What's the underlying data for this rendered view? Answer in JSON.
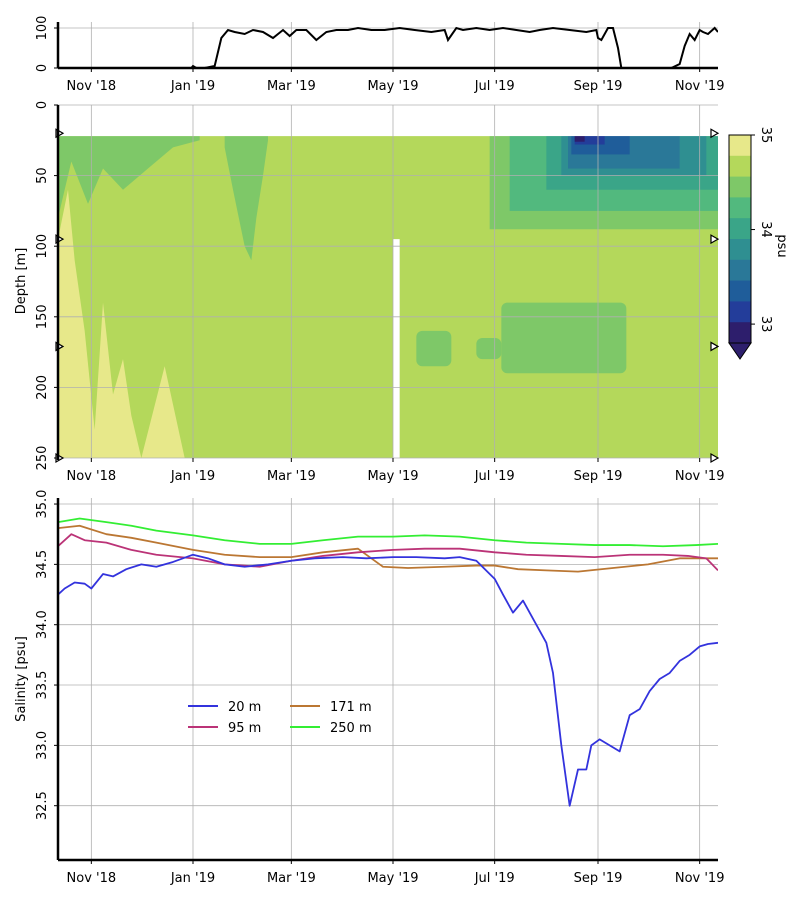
{
  "chart_data": [
    {
      "type": "line",
      "panel": "ice-concentration",
      "title": "",
      "xlabel": "",
      "ylabel": "",
      "xlim": [
        "2018-10-12",
        "2019-11-12"
      ],
      "ylim": [
        0,
        100
      ],
      "yticks": [
        "0",
        "100"
      ],
      "xticks": [
        "Nov '18",
        "Jan '19",
        "Mar '19",
        "May '19",
        "Jul '19",
        "Sep '19",
        "Nov '19"
      ],
      "grid": true,
      "series": [
        {
          "color": "#000000",
          "x": [
            "2018-10-12",
            "2018-12-15",
            "2018-12-31",
            "2019-01-01",
            "2019-01-03",
            "2019-01-08",
            "2019-01-14",
            "2019-01-18",
            "2019-01-22",
            "2019-01-26",
            "2019-02-01",
            "2019-02-06",
            "2019-02-12",
            "2019-02-18",
            "2019-02-24",
            "2019-02-28",
            "2019-03-04",
            "2019-03-10",
            "2019-03-16",
            "2019-03-22",
            "2019-03-28",
            "2019-04-04",
            "2019-04-10",
            "2019-04-18",
            "2019-04-26",
            "2019-05-05",
            "2019-05-14",
            "2019-05-24",
            "2019-06-01",
            "2019-06-03",
            "2019-06-08",
            "2019-06-12",
            "2019-06-20",
            "2019-06-28",
            "2019-07-06",
            "2019-07-14",
            "2019-07-22",
            "2019-07-28",
            "2019-08-05",
            "2019-08-15",
            "2019-08-25",
            "2019-08-31",
            "2019-09-01",
            "2019-09-03",
            "2019-09-07",
            "2019-09-10",
            "2019-09-13",
            "2019-09-15",
            "2019-10-15",
            "2019-10-20",
            "2019-10-23",
            "2019-10-26",
            "2019-10-29",
            "2019-11-01",
            "2019-11-03",
            "2019-11-06",
            "2019-11-10",
            "2019-11-12"
          ],
          "y": [
            0,
            0,
            0,
            5,
            0,
            0,
            5,
            75,
            95,
            90,
            85,
            95,
            90,
            75,
            95,
            80,
            95,
            95,
            70,
            90,
            95,
            95,
            100,
            95,
            95,
            100,
            95,
            90,
            95,
            70,
            100,
            95,
            100,
            95,
            100,
            95,
            90,
            95,
            100,
            95,
            90,
            95,
            75,
            70,
            100,
            100,
            50,
            0,
            0,
            10,
            55,
            85,
            70,
            95,
            90,
            85,
            100,
            90
          ]
        }
      ]
    },
    {
      "type": "heatmap",
      "panel": "salinity-depth",
      "title": "",
      "xlabel": "",
      "ylabel": "Depth [m]",
      "xlim": [
        "2018-10-12",
        "2019-11-12"
      ],
      "ylim": [
        250,
        0
      ],
      "yticks": [
        "0",
        "50",
        "100",
        "150",
        "200",
        "250"
      ],
      "xticks": [
        "Nov '18",
        "Jan '19",
        "Mar '19",
        "May '19",
        "Jul '19",
        "Sep '19",
        "Nov '19"
      ],
      "grid": true,
      "instrument_depths_m": [
        20,
        95,
        171,
        250
      ],
      "data_gap": [
        "2019-05-01",
        "2019-05-05"
      ],
      "colorbar": {
        "label": "psu",
        "range": [
          32.8,
          35
        ],
        "ticks": [
          "33",
          "34",
          "35"
        ],
        "colors": [
          "#2d1e6c",
          "#233d9a",
          "#1f5d9a",
          "#2a7898",
          "#2f8f91",
          "#3aa588",
          "#52b97e",
          "#7ec868",
          "#b4d85b",
          "#e7e88a"
        ]
      },
      "regions": [
        {
          "name": "deep-fresh-layer",
          "x": [
            "2019-05-15",
            "2019-09-18"
          ],
          "depth": [
            160,
            190
          ],
          "salinity": 34.4
        },
        {
          "name": "winter-upper-layer",
          "x": [
            "2018-10-12",
            "2019-02-10"
          ],
          "depth": [
            22,
            110
          ],
          "salinity": 34.4
        },
        {
          "name": "summer-surface-freshening",
          "x": [
            "2019-07-01",
            "2019-11-12"
          ],
          "depth": [
            22,
            90
          ],
          "salinity_min": 32.8
        },
        {
          "name": "salty-bottom-water",
          "x": [
            "2018-10-12",
            "2018-12-27"
          ],
          "depth": [
            100,
            250
          ],
          "salinity": 34.9
        }
      ]
    },
    {
      "type": "line",
      "panel": "salinity-timeseries",
      "title": "",
      "xlabel": "",
      "ylabel": "Salinity [psu]",
      "xlim": [
        "2018-10-12",
        "2019-11-12"
      ],
      "ylim": [
        32.05,
        35.05
      ],
      "yticks": [
        "32.5",
        "33.0",
        "33.5",
        "34.0",
        "34.5",
        "35.0"
      ],
      "xticks": [
        "Nov '18",
        "Jan '19",
        "Mar '19",
        "May '19",
        "Jul '19",
        "Sep '19",
        "Nov '19"
      ],
      "grid": true,
      "legend": "center-left",
      "series": [
        {
          "name": "20 m",
          "color": "#3333dd",
          "x": [
            "2018-10-12",
            "2018-10-16",
            "2018-10-22",
            "2018-10-28",
            "2018-11-01",
            "2018-11-08",
            "2018-11-14",
            "2018-11-22",
            "2018-12-01",
            "2018-12-10",
            "2018-12-20",
            "2019-01-01",
            "2019-01-10",
            "2019-01-20",
            "2019-02-01",
            "2019-02-15",
            "2019-03-01",
            "2019-03-15",
            "2019-04-01",
            "2019-04-15",
            "2019-05-01",
            "2019-05-15",
            "2019-06-01",
            "2019-06-10",
            "2019-06-20",
            "2019-07-01",
            "2019-07-06",
            "2019-07-12",
            "2019-07-18",
            "2019-07-24",
            "2019-08-01",
            "2019-08-05",
            "2019-08-10",
            "2019-08-15",
            "2019-08-20",
            "2019-08-25",
            "2019-08-28",
            "2019-09-02",
            "2019-09-08",
            "2019-09-14",
            "2019-09-20",
            "2019-09-26",
            "2019-10-02",
            "2019-10-08",
            "2019-10-14",
            "2019-10-20",
            "2019-10-26",
            "2019-11-01",
            "2019-11-06",
            "2019-11-12"
          ],
          "y": [
            34.25,
            34.3,
            34.35,
            34.34,
            34.3,
            34.42,
            34.4,
            34.46,
            34.5,
            34.48,
            34.52,
            34.58,
            34.55,
            34.5,
            34.48,
            34.5,
            34.53,
            34.55,
            34.56,
            34.55,
            34.56,
            34.56,
            34.55,
            34.56,
            34.53,
            34.38,
            34.25,
            34.1,
            34.2,
            34.05,
            33.85,
            33.6,
            33.0,
            32.5,
            32.8,
            32.8,
            33.0,
            33.05,
            33.0,
            32.95,
            33.25,
            33.3,
            33.45,
            33.55,
            33.6,
            33.7,
            33.75,
            33.82,
            33.84,
            33.85
          ]
        },
        {
          "name": "95 m",
          "color": "#bb3377",
          "x": [
            "2018-10-12",
            "2018-10-20",
            "2018-10-28",
            "2018-11-10",
            "2018-11-25",
            "2018-12-10",
            "2019-01-01",
            "2019-01-20",
            "2019-02-10",
            "2019-03-01",
            "2019-03-20",
            "2019-04-10",
            "2019-05-01",
            "2019-05-20",
            "2019-06-10",
            "2019-07-01",
            "2019-07-20",
            "2019-08-10",
            "2019-08-30",
            "2019-09-20",
            "2019-10-10",
            "2019-10-25",
            "2019-11-05",
            "2019-11-12"
          ],
          "y": [
            34.65,
            34.75,
            34.7,
            34.68,
            34.62,
            34.58,
            34.55,
            34.5,
            34.48,
            34.53,
            34.57,
            34.6,
            34.62,
            34.63,
            34.63,
            34.6,
            34.58,
            34.57,
            34.56,
            34.58,
            34.58,
            34.57,
            34.55,
            34.45
          ]
        },
        {
          "name": "171 m",
          "color": "#bb7733",
          "x": [
            "2018-10-12",
            "2018-10-25",
            "2018-11-10",
            "2018-11-25",
            "2018-12-10",
            "2019-01-01",
            "2019-01-20",
            "2019-02-10",
            "2019-03-01",
            "2019-03-20",
            "2019-04-10",
            "2019-04-25",
            "2019-05-10",
            "2019-06-01",
            "2019-06-20",
            "2019-07-01",
            "2019-07-15",
            "2019-08-01",
            "2019-08-20",
            "2019-09-10",
            "2019-10-01",
            "2019-10-20",
            "2019-11-12"
          ],
          "y": [
            34.8,
            34.82,
            34.75,
            34.72,
            34.68,
            34.62,
            34.58,
            34.56,
            34.56,
            34.6,
            34.63,
            34.48,
            34.47,
            34.48,
            34.49,
            34.49,
            34.46,
            34.45,
            34.44,
            34.47,
            34.5,
            34.55,
            34.55
          ]
        },
        {
          "name": "250 m",
          "color": "#33ee33",
          "x": [
            "2018-10-12",
            "2018-10-25",
            "2018-11-10",
            "2018-11-25",
            "2018-12-10",
            "2019-01-01",
            "2019-01-20",
            "2019-02-10",
            "2019-03-01",
            "2019-03-20",
            "2019-04-10",
            "2019-05-01",
            "2019-05-20",
            "2019-06-10",
            "2019-07-01",
            "2019-07-20",
            "2019-08-10",
            "2019-08-30",
            "2019-09-20",
            "2019-10-10",
            "2019-10-30",
            "2019-11-12"
          ],
          "y": [
            34.85,
            34.88,
            34.85,
            34.82,
            34.78,
            34.74,
            34.7,
            34.67,
            34.67,
            34.7,
            34.73,
            34.73,
            34.74,
            34.73,
            34.7,
            34.68,
            34.67,
            34.66,
            34.66,
            34.65,
            34.66,
            34.67
          ]
        }
      ]
    }
  ]
}
